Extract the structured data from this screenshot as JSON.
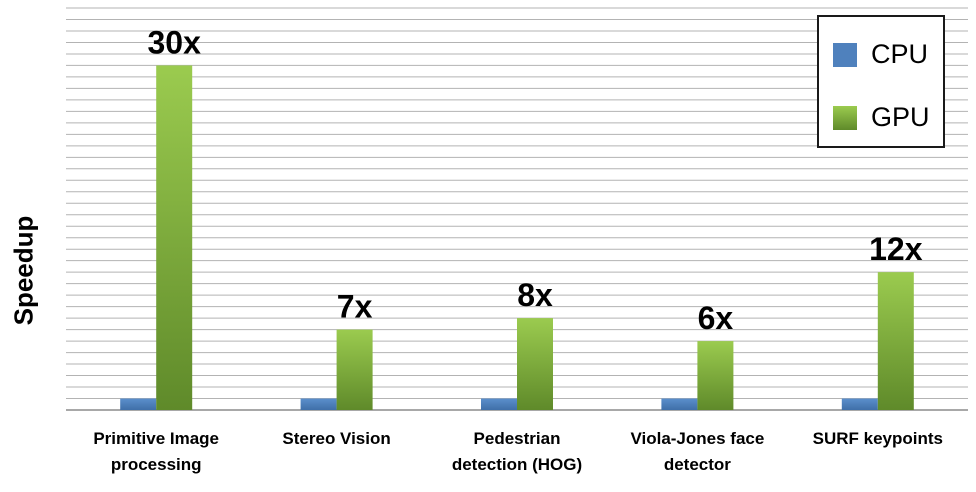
{
  "chart_data": {
    "type": "bar",
    "title": "",
    "xlabel": "",
    "ylabel": "Speedup",
    "categories": [
      "Primitive Image\nprocessing",
      "Stereo Vision",
      "Pedestrian\ndetection (HOG)",
      "Viola-Jones face\ndetector",
      "SURF keypoints"
    ],
    "series": [
      {
        "name": "CPU",
        "color": "#4f81bd",
        "values": [
          1,
          1,
          1,
          1,
          1
        ]
      },
      {
        "name": "GPU",
        "color": "#7fae3a",
        "values": [
          30,
          7,
          8,
          6,
          12
        ]
      }
    ],
    "data_labels": [
      "30x",
      "7x",
      "8x",
      "6x",
      "12x"
    ],
    "ylim": [
      0,
      35
    ],
    "grid": true,
    "legend_position": "top-right"
  }
}
